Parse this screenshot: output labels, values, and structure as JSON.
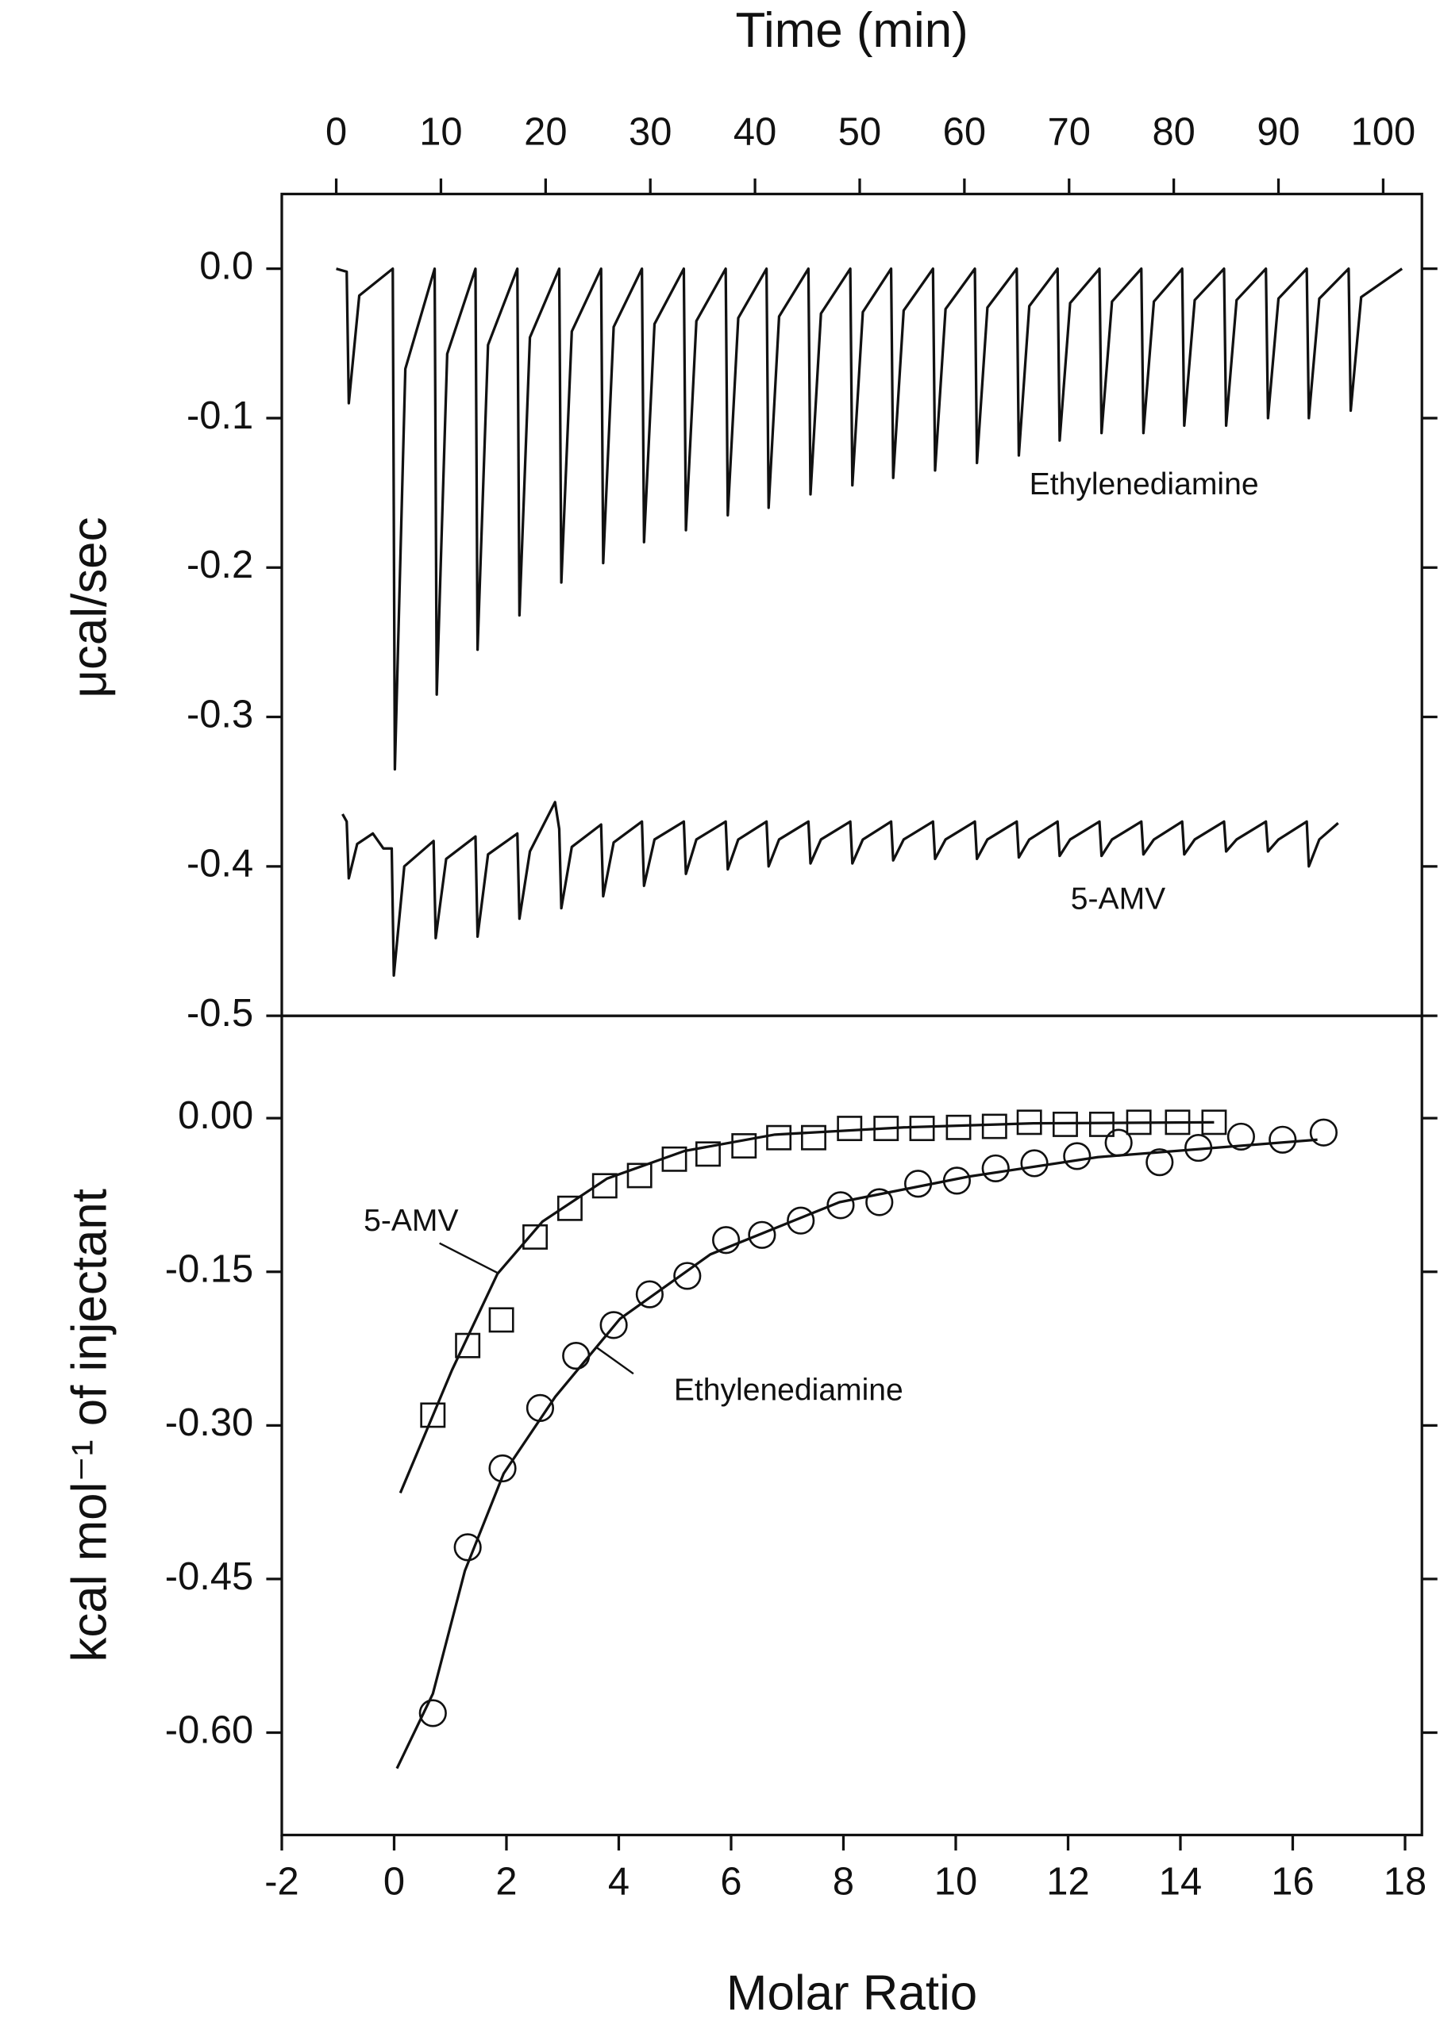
{
  "chart_data": [
    {
      "type": "line",
      "x_label": "Time (min)",
      "y_label": "μcal/sec",
      "xlim": [
        -5.2,
        103.7
      ],
      "xticks": [
        0,
        10,
        20,
        30,
        40,
        50,
        60,
        70,
        80,
        90,
        100
      ],
      "ylim": [
        -0.5,
        0.05
      ],
      "yticks": [
        {
          "value": 0,
          "label": "0.0"
        },
        -0.1,
        -0.2,
        -0.3,
        -0.4,
        -0.5
      ],
      "color": "#111111",
      "annotations": [
        "Ethylenediamine",
        "5-AMV"
      ],
      "series": [
        {
          "x": [
            0,
            1.0,
            1.2,
            2.2,
            5.4,
            5.6,
            6.6,
            9.4,
            9.6,
            10.6,
            13.3,
            13.5,
            14.5,
            17.3,
            17.5,
            18.5,
            21.3,
            21.5,
            22.5,
            25.3,
            25.5,
            26.5,
            29.2,
            29.4,
            30.4,
            33.2,
            33.4,
            34.4,
            37.2,
            37.4,
            38.4,
            41.1,
            41.3,
            42.3,
            45.1,
            45.3,
            46.3,
            49.1,
            49.3,
            50.3,
            53.0,
            53.2,
            54.2,
            57.0,
            57.2,
            58.2,
            61.0,
            61.2,
            62.2,
            65.0,
            65.2,
            66.2,
            68.9,
            69.1,
            70.1,
            72.9,
            73.1,
            74.1,
            76.9,
            77.1,
            78.1,
            80.8,
            81.0,
            82.0,
            84.8,
            85.0,
            86.0,
            88.8,
            89.0,
            90.0,
            92.7,
            92.9,
            93.9,
            96.7,
            96.9,
            97.9,
            101.8
          ],
          "values": [
            0,
            -0.002,
            -0.09,
            -0.018,
            0,
            -0.335,
            -0.067,
            0,
            -0.285,
            -0.057,
            0,
            -0.255,
            -0.051,
            0,
            -0.232,
            -0.046,
            0,
            -0.21,
            -0.042,
            0,
            -0.197,
            -0.039,
            0,
            -0.183,
            -0.037,
            0,
            -0.175,
            -0.035,
            0,
            -0.165,
            -0.033,
            0,
            -0.16,
            -0.032,
            0,
            -0.151,
            -0.03,
            0,
            -0.145,
            -0.029,
            0,
            -0.14,
            -0.028,
            0,
            -0.135,
            -0.027,
            0,
            -0.13,
            -0.026,
            0,
            -0.125,
            -0.025,
            0,
            -0.115,
            -0.023,
            0,
            -0.11,
            -0.022,
            0,
            -0.11,
            -0.022,
            0,
            -0.105,
            -0.021,
            0,
            -0.105,
            -0.021,
            0,
            -0.1,
            -0.02,
            0,
            -0.1,
            -0.02,
            0,
            -0.095,
            -0.019,
            0
          ]
        },
        {
          "x": [
            0.6,
            1.0,
            1.2,
            2.0,
            3.5,
            4.5,
            5.3,
            5.5,
            6.5,
            9.3,
            9.5,
            10.5,
            13.3,
            13.5,
            14.5,
            17.3,
            17.5,
            18.5,
            20.9,
            21.3,
            21.5,
            22.5,
            25.3,
            25.5,
            26.5,
            29.2,
            29.4,
            30.4,
            33.2,
            33.4,
            34.4,
            37.2,
            37.4,
            38.4,
            41.1,
            41.3,
            42.3,
            45.1,
            45.3,
            46.3,
            49.1,
            49.3,
            50.3,
            53.0,
            53.2,
            54.2,
            57.0,
            57.2,
            58.2,
            61.0,
            61.2,
            62.2,
            65.0,
            65.2,
            66.2,
            68.9,
            69.1,
            70.1,
            72.9,
            73.1,
            74.1,
            76.9,
            77.1,
            78.1,
            80.8,
            81.0,
            82.0,
            84.8,
            85.0,
            86.0,
            88.8,
            89.0,
            90.0,
            92.7,
            92.9,
            93.9,
            95.7
          ],
          "values": [
            -0.365,
            -0.37,
            -0.408,
            -0.385,
            -0.378,
            -0.388,
            -0.388,
            -0.473,
            -0.4,
            -0.383,
            -0.448,
            -0.395,
            -0.38,
            -0.447,
            -0.392,
            -0.378,
            -0.435,
            -0.39,
            -0.357,
            -0.375,
            -0.428,
            -0.387,
            -0.372,
            -0.42,
            -0.384,
            -0.37,
            -0.413,
            -0.382,
            -0.37,
            -0.405,
            -0.382,
            -0.37,
            -0.402,
            -0.382,
            -0.37,
            -0.4,
            -0.382,
            -0.37,
            -0.398,
            -0.382,
            -0.37,
            -0.398,
            -0.382,
            -0.37,
            -0.396,
            -0.382,
            -0.37,
            -0.395,
            -0.382,
            -0.37,
            -0.395,
            -0.382,
            -0.37,
            -0.394,
            -0.382,
            -0.37,
            -0.393,
            -0.382,
            -0.37,
            -0.393,
            -0.382,
            -0.37,
            -0.392,
            -0.382,
            -0.37,
            -0.392,
            -0.382,
            -0.37,
            -0.39,
            -0.382,
            -0.37,
            -0.39,
            -0.382,
            -0.37,
            -0.4,
            -0.382,
            -0.371
          ]
        }
      ]
    },
    {
      "type": "scatter",
      "x_label": "Molar Ratio",
      "y_label": "kcal mol⁻¹ of injectant",
      "xlim": [
        -2,
        18.3
      ],
      "xticks": [
        -2,
        0,
        2,
        4,
        6,
        8,
        10,
        12,
        14,
        16,
        18
      ],
      "ylim": [
        -0.7,
        0.1
      ],
      "yticks": [
        {
          "value": 0,
          "label": "0.00"
        },
        -0.15,
        {
          "value": -0.3,
          "label": "-0.30"
        },
        -0.45,
        {
          "value": -0.6,
          "label": "-0.60"
        }
      ],
      "color": "#111111",
      "annotations": [
        "5-AMV",
        "Ethylenediamine"
      ],
      "series": [
        {
          "marker": "square",
          "x": [
            0.69,
            1.31,
            1.91,
            2.51,
            3.13,
            3.75,
            4.37,
            4.99,
            5.59,
            6.23,
            6.85,
            7.47,
            8.11,
            8.76,
            9.4,
            10.05,
            10.69,
            11.31,
            11.95,
            12.6,
            13.26,
            13.95,
            14.6
          ],
          "values": [
            -0.29,
            -0.222,
            -0.197,
            -0.116,
            -0.088,
            -0.066,
            -0.056,
            -0.04,
            -0.035,
            -0.027,
            -0.019,
            -0.019,
            -0.01,
            -0.01,
            -0.01,
            -0.009,
            -0.008,
            -0.004,
            -0.006,
            -0.006,
            -0.004,
            -0.004,
            -0.004
          ]
        },
        {
          "marker": "circle",
          "x": [
            0.69,
            1.31,
            1.93,
            2.6,
            3.24,
            3.91,
            4.55,
            5.22,
            5.91,
            6.55,
            7.24,
            7.95,
            8.64,
            9.33,
            10.02,
            10.71,
            11.4,
            12.16,
            12.9,
            13.63,
            14.32,
            15.08,
            15.82,
            16.55
          ],
          "values": [
            -0.581,
            -0.419,
            -0.342,
            -0.283,
            -0.232,
            -0.202,
            -0.172,
            -0.154,
            -0.119,
            -0.114,
            -0.1,
            -0.085,
            -0.082,
            -0.064,
            -0.061,
            -0.049,
            -0.044,
            -0.037,
            -0.024,
            -0.043,
            -0.029,
            -0.018,
            -0.021,
            -0.014
          ]
        },
        {
          "x": [
            0.11,
            1.03,
            1.84,
            2.64,
            3.79,
            5.17,
            6.78,
            9.08,
            11.38,
            14.6
          ],
          "values": [
            -0.366,
            -0.246,
            -0.152,
            -0.101,
            -0.059,
            -0.032,
            -0.016,
            -0.009,
            -0.005,
            -0.004
          ]
        },
        {
          "x": [
            0.05,
            0.69,
            1.26,
            1.95,
            2.87,
            4.02,
            5.63,
            7.93,
            10.23,
            12.53,
            16.44
          ],
          "values": [
            -0.635,
            -0.562,
            -0.442,
            -0.347,
            -0.272,
            -0.196,
            -0.133,
            -0.082,
            -0.057,
            -0.038,
            -0.021
          ]
        }
      ]
    }
  ]
}
